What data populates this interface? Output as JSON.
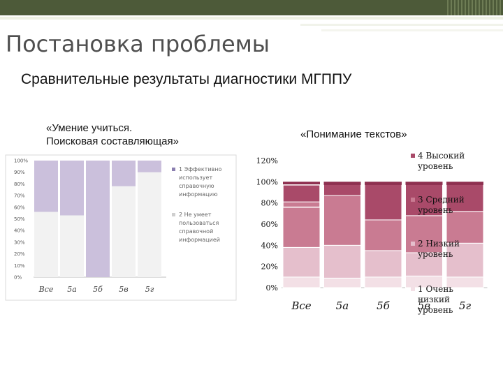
{
  "slide": {
    "title": "Постановка проблемы",
    "subtitle": "Сравнительные результаты диагностики МГППУ",
    "chart1_label_line1": "«Умение учиться.",
    "chart1_label_line2": "Поисковая составляющая»",
    "chart2_label": "«Понимание  текстов»"
  },
  "chart_data": [
    {
      "type": "bar",
      "stacked": true,
      "categories": [
        "Все",
        "5а",
        "5б",
        "5в",
        "5г"
      ],
      "yticks": [
        "0%",
        "10%",
        "20%",
        "30%",
        "40%",
        "50%",
        "60%",
        "70%",
        "80%",
        "90%",
        "100%"
      ],
      "ylim": [
        0,
        100
      ],
      "grid": false,
      "legend_position": "right",
      "series": [
        {
          "name": "2 Не умеет пользоваться справочной информацией",
          "values": [
            56,
            53,
            0,
            78,
            90
          ],
          "color": "#f2f2f2",
          "legend_lines": [
            "2 Не умеет",
            "пользоваться",
            "справочной",
            "информацией"
          ]
        },
        {
          "name": "1 Эффективно использует справочную информацию",
          "values": [
            44,
            47,
            100,
            22,
            10
          ],
          "color": "#cbc0dc",
          "legend_lines": [
            "1 Эффективно",
            "использует",
            "справочную",
            "информацию"
          ]
        }
      ]
    },
    {
      "type": "bar",
      "stacked": true,
      "categories": [
        "Все",
        "5а",
        "5б",
        "5в",
        "5г"
      ],
      "yticks": [
        "0%",
        "20%",
        "40%",
        "60%",
        "80%",
        "100%",
        "120%"
      ],
      "ylim": [
        0,
        120
      ],
      "grid": false,
      "legend_position": "right",
      "series": [
        {
          "name": "1 Очень низкий уровень",
          "values": [
            10,
            9,
            10,
            11,
            10
          ],
          "color": "#f3e0e6",
          "legend_lines": [
            "1  Очень",
            "низкий",
            "уровень"
          ]
        },
        {
          "name": "2 Низкий уровень",
          "values": [
            28,
            31,
            25,
            22,
            32
          ],
          "color": "#e5bfcc",
          "legend_lines": [
            "2  Низкий",
            "уровень"
          ]
        },
        {
          "name": "3 Средний уровень",
          "values": [
            43,
            47,
            29,
            35,
            30
          ],
          "color": "#c97b92",
          "legend_lines": [
            "3  Средний",
            "уровень"
          ]
        },
        {
          "name": "4 Высокий уровень",
          "values": [
            19,
            13,
            36,
            32,
            28
          ],
          "color": "#a94a69",
          "legend_lines": [
            "4  Высокий",
            "уровень"
          ]
        }
      ],
      "top_band_color": "#8e3050"
    }
  ]
}
